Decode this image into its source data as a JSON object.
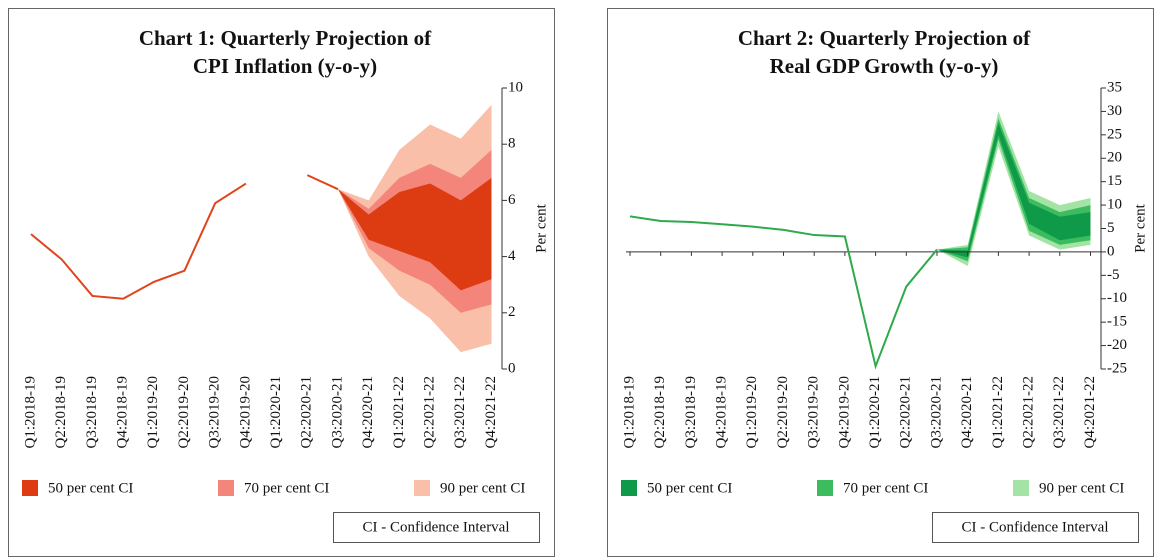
{
  "chart_data": [
    {
      "type": "fan",
      "title": [
        "Chart 1: Quarterly Projection of",
        "CPI Inflation (y-o-y)"
      ],
      "y_label": "Per cent",
      "note": "CI - Confidence Interval",
      "categories": [
        "Q1:2018-19",
        "Q2:2018-19",
        "Q3:2018-19",
        "Q4:2018-19",
        "Q1:2019-20",
        "Q2:2019-20",
        "Q3:2019-20",
        "Q4:2019-20",
        "Q1:2020-21",
        "Q2:2020-21",
        "Q3:2020-21",
        "Q4:2020-21",
        "Q1:2021-22",
        "Q2:2021-22",
        "Q3:2021-22",
        "Q4:2021-22"
      ],
      "line": {
        "color": "#e0441a",
        "values": [
          4.8,
          3.9,
          2.6,
          2.5,
          3.1,
          3.5,
          5.9,
          6.6,
          null,
          6.9,
          6.4,
          null,
          null,
          null,
          null,
          null
        ]
      },
      "series": [
        {
          "name": "90 per cent CI",
          "color": "#f9bfa8",
          "low": [
            null,
            null,
            null,
            null,
            null,
            null,
            null,
            null,
            null,
            null,
            6.4,
            4.0,
            2.6,
            1.8,
            0.6,
            0.9
          ],
          "high": [
            null,
            null,
            null,
            null,
            null,
            null,
            null,
            null,
            null,
            null,
            6.4,
            6.0,
            7.8,
            8.7,
            8.2,
            9.4
          ]
        },
        {
          "name": "70 per cent CI",
          "color": "#f4857a",
          "low": [
            null,
            null,
            null,
            null,
            null,
            null,
            null,
            null,
            null,
            null,
            6.4,
            4.3,
            3.5,
            3.0,
            2.0,
            2.3
          ],
          "high": [
            null,
            null,
            null,
            null,
            null,
            null,
            null,
            null,
            null,
            null,
            6.4,
            5.7,
            6.8,
            7.3,
            6.8,
            7.8
          ]
        },
        {
          "name": "50 per cent CI",
          "color": "#dd3c12",
          "low": [
            null,
            null,
            null,
            null,
            null,
            null,
            null,
            null,
            null,
            null,
            6.4,
            4.6,
            4.2,
            3.8,
            2.8,
            3.2
          ],
          "high": [
            null,
            null,
            null,
            null,
            null,
            null,
            null,
            null,
            null,
            null,
            6.4,
            5.5,
            6.3,
            6.6,
            6.0,
            6.8
          ]
        }
      ],
      "ylim": [
        0,
        10
      ],
      "yticks": [
        0,
        2,
        4,
        6,
        8,
        10
      ]
    },
    {
      "type": "fan",
      "title": [
        "Chart 2: Quarterly Projection of",
        "Real GDP Growth (y-o-y)"
      ],
      "y_label": "Per cent",
      "note": "CI - Confidence Interval",
      "categories": [
        "Q1:2018-19",
        "Q2:2018-19",
        "Q3:2018-19",
        "Q4:2018-19",
        "Q1:2019-20",
        "Q2:2019-20",
        "Q3:2019-20",
        "Q4:2019-20",
        "Q1:2020-21",
        "Q2:2020-21",
        "Q3:2020-21",
        "Q4:2020-21",
        "Q1:2021-22",
        "Q2:2021-22",
        "Q3:2021-22",
        "Q4:2021-22"
      ],
      "line": {
        "color": "#2eaa4a",
        "values": [
          7.6,
          6.6,
          6.4,
          5.9,
          5.4,
          4.7,
          3.6,
          3.3,
          -24.4,
          -7.4,
          0.5,
          null,
          null,
          null,
          null,
          null
        ]
      },
      "series": [
        {
          "name": "90 per cent CI",
          "color": "#a3e4a6",
          "low": [
            null,
            null,
            null,
            null,
            null,
            null,
            null,
            null,
            null,
            null,
            0.5,
            -3.0,
            22.5,
            3.5,
            0.5,
            1.5
          ],
          "high": [
            null,
            null,
            null,
            null,
            null,
            null,
            null,
            null,
            null,
            null,
            0.5,
            1.5,
            30.0,
            13.0,
            10.0,
            11.5
          ]
        },
        {
          "name": "70 per cent CI",
          "color": "#3dbb5f",
          "low": [
            null,
            null,
            null,
            null,
            null,
            null,
            null,
            null,
            null,
            null,
            0.5,
            -2.0,
            24.0,
            4.5,
            1.5,
            2.5
          ],
          "high": [
            null,
            null,
            null,
            null,
            null,
            null,
            null,
            null,
            null,
            null,
            0.5,
            1.0,
            28.5,
            11.5,
            8.5,
            10.0
          ]
        },
        {
          "name": "50 per cent CI",
          "color": "#0e9a48",
          "low": [
            null,
            null,
            null,
            null,
            null,
            null,
            null,
            null,
            null,
            null,
            0.5,
            -1.2,
            25.0,
            6.0,
            2.5,
            3.5
          ],
          "high": [
            null,
            null,
            null,
            null,
            null,
            null,
            null,
            null,
            null,
            null,
            0.5,
            0.3,
            27.5,
            10.5,
            7.5,
            8.5
          ]
        }
      ],
      "ylim": [
        -25,
        35
      ],
      "yticks": [
        -25,
        -20,
        -15,
        -10,
        -5,
        0,
        5,
        10,
        15,
        20,
        25,
        30,
        35
      ]
    }
  ]
}
